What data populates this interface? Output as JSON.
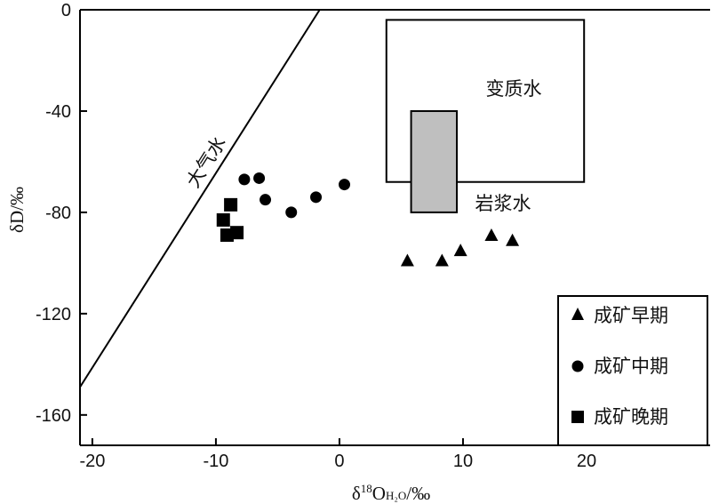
{
  "chart_data": {
    "type": "scatter",
    "xlabel": {
      "prefix": "δ",
      "sup": "18",
      "main": "O",
      "sub": "H₂O",
      "unit": "/‰"
    },
    "ylabel": "δD/‰",
    "xlim": [
      -21,
      30
    ],
    "ylim": [
      -172,
      0
    ],
    "x_ticks": [
      -20,
      -10,
      0,
      10,
      20
    ],
    "y_ticks": [
      0,
      -40,
      -80,
      -120,
      -160
    ],
    "grid": false,
    "legend_position": "bottom-right",
    "series": [
      {
        "name": "成矿早期",
        "marker": "triangle",
        "points": [
          [
            5.5,
            -99
          ],
          [
            8.3,
            -99
          ],
          [
            9.8,
            -95
          ],
          [
            12.3,
            -89
          ],
          [
            14.0,
            -91
          ]
        ]
      },
      {
        "name": "成矿中期",
        "marker": "circle",
        "points": [
          [
            -7.7,
            -67
          ],
          [
            -6.5,
            -66.5
          ],
          [
            -6.0,
            -75
          ],
          [
            -3.9,
            -80
          ],
          [
            -1.9,
            -74
          ],
          [
            0.4,
            -69
          ]
        ]
      },
      {
        "name": "成矿晚期",
        "marker": "square",
        "points": [
          [
            -8.8,
            -77
          ],
          [
            -9.4,
            -83
          ],
          [
            -8.3,
            -88
          ],
          [
            -9.1,
            -89
          ]
        ]
      }
    ],
    "reference_line": {
      "label": "大气水",
      "from": [
        -21,
        -149
      ],
      "to": [
        -1.6,
        0
      ]
    },
    "regions": [
      {
        "label": "变质水",
        "x": [
          3.8,
          19.8
        ],
        "y": [
          -68,
          -4
        ],
        "fill": "#ffffff"
      },
      {
        "label": "岩浆水",
        "x": [
          5.8,
          9.5
        ],
        "y": [
          -80,
          -40
        ],
        "fill": "#bfbfbf"
      }
    ]
  }
}
